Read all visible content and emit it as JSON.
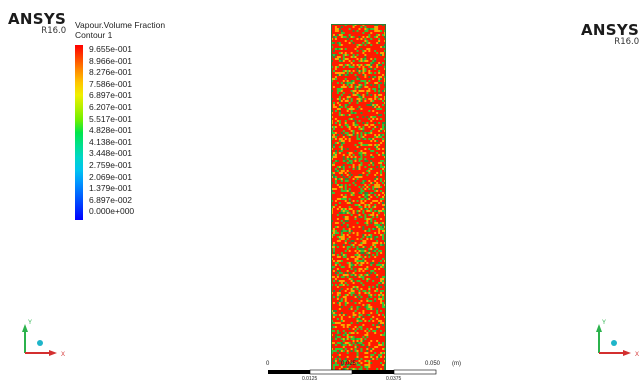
{
  "header": {
    "brand": "ANSYS",
    "version": "R16.0"
  },
  "legend": {
    "variable": "Vapour.Volume Fraction",
    "plot": "Contour 1",
    "levels": [
      {
        "label": "9.655e-001",
        "color": "#ff0000"
      },
      {
        "label": "8.966e-001",
        "color": "#ff4400"
      },
      {
        "label": "8.276e-001",
        "color": "#ff8a00"
      },
      {
        "label": "7.586e-001",
        "color": "#ffc600"
      },
      {
        "label": "6.897e-001",
        "color": "#f0f000"
      },
      {
        "label": "6.207e-001",
        "color": "#b4f000"
      },
      {
        "label": "5.517e-001",
        "color": "#6ef000"
      },
      {
        "label": "4.828e-001",
        "color": "#00e64a"
      },
      {
        "label": "4.138e-001",
        "color": "#00e08c"
      },
      {
        "label": "3.448e-001",
        "color": "#00d6c8"
      },
      {
        "label": "2.759e-001",
        "color": "#00c4f0"
      },
      {
        "label": "2.069e-001",
        "color": "#0096ff"
      },
      {
        "label": "1.379e-001",
        "color": "#0064ff"
      },
      {
        "label": "6.897e-002",
        "color": "#0032ff"
      },
      {
        "label": "0.000e+000",
        "color": "#0000ff"
      }
    ]
  },
  "scale_bar": {
    "labels": {
      "zero": "0",
      "mid": "0.025",
      "end": "0.050",
      "unit": "(m)",
      "q1": "0.0125",
      "q3": "0.0375"
    }
  },
  "axes": {
    "y_label": "Y",
    "x_label": "X",
    "colors": {
      "y": "#2bb24c",
      "x": "#d32f2f",
      "z": "#1fb5c9"
    }
  },
  "contour_colors": {
    "high": "#ff1a00",
    "mid": "#ffa500",
    "low": "#34c734",
    "vlow": "#2d8f3a"
  }
}
